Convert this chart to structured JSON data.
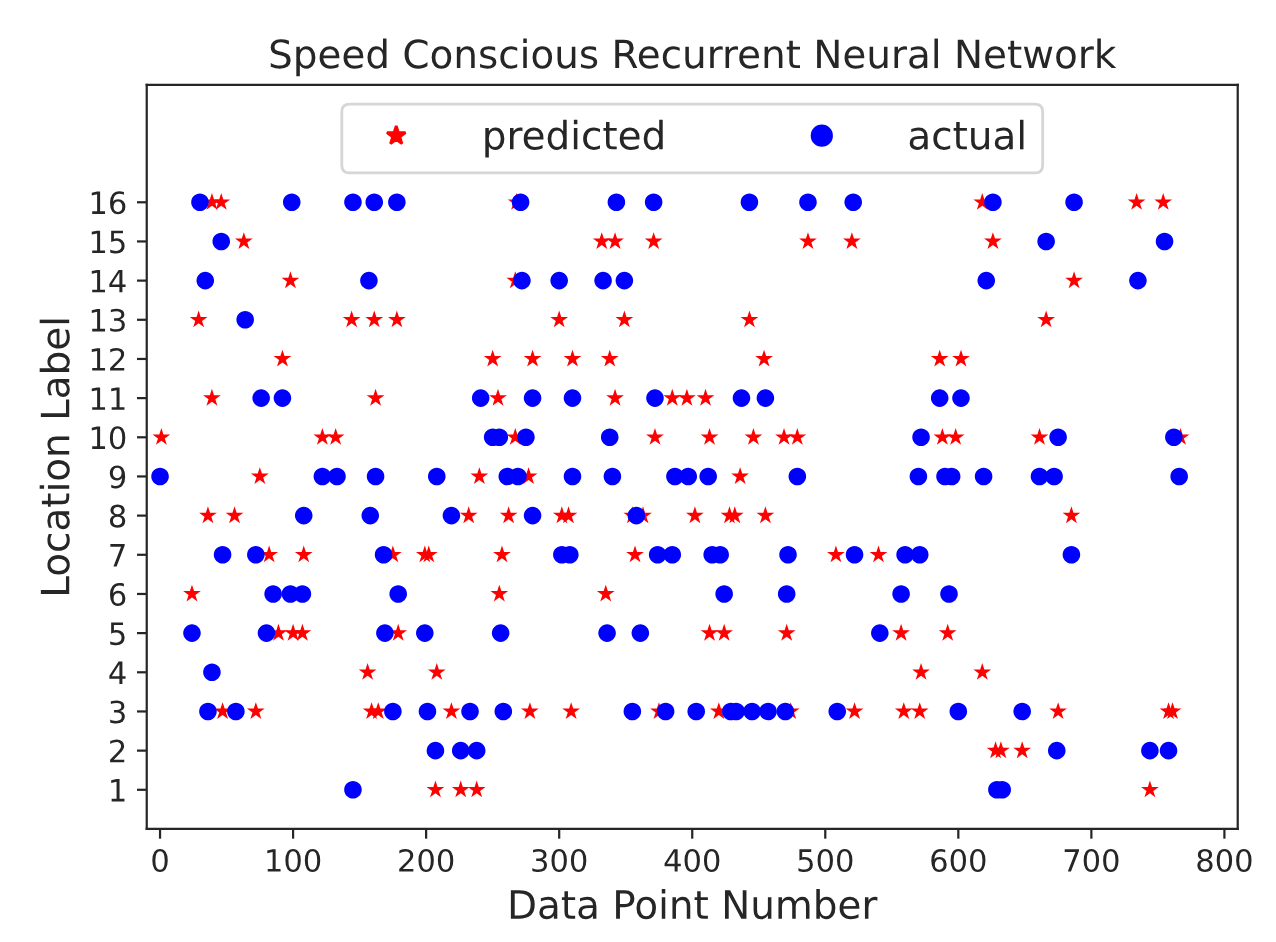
{
  "chart_data": {
    "type": "scatter",
    "title": "Speed Conscious Recurrent Neural Network",
    "xlabel": "Data Point Number",
    "ylabel": "Location Label",
    "xlim": [
      -10,
      810
    ],
    "xticks": [
      0,
      100,
      200,
      300,
      400,
      500,
      600,
      700,
      800
    ],
    "ylim": [
      0,
      19
    ],
    "yticks": [
      1,
      2,
      3,
      4,
      5,
      6,
      7,
      8,
      9,
      10,
      11,
      12,
      13,
      14,
      15,
      16
    ],
    "grid": false,
    "legend": "top",
    "series": [
      {
        "name": "predicted",
        "color": "#ff0000",
        "marker": "star",
        "x": [
          39,
          46,
          268,
          618,
          734,
          754,
          63,
          332,
          342,
          371,
          487,
          520,
          626,
          98,
          267,
          687,
          29,
          144,
          161,
          178,
          300,
          349,
          443,
          666,
          92,
          250,
          280,
          310,
          338,
          454,
          586,
          602,
          39,
          162,
          254,
          342,
          385,
          396,
          410,
          1,
          122,
          132,
          267,
          372,
          413,
          446,
          469,
          479,
          588,
          598,
          661,
          767,
          75,
          240,
          277,
          436,
          36,
          56,
          232,
          262,
          302,
          307,
          355,
          363,
          402,
          428,
          432,
          455,
          685,
          82,
          108,
          175,
          199,
          202,
          257,
          357,
          508,
          540,
          24,
          255,
          335,
          89,
          100,
          107,
          179,
          413,
          424,
          471,
          557,
          592,
          156,
          208,
          572,
          618,
          47,
          72,
          159,
          164,
          219,
          278,
          309,
          375,
          420,
          474,
          522,
          559,
          571,
          675,
          758,
          761,
          628,
          632,
          648,
          207,
          226,
          238,
          744
        ],
        "values": [
          16,
          16,
          16,
          16,
          16,
          16,
          15,
          15,
          15,
          15,
          15,
          15,
          15,
          14,
          14,
          14,
          13,
          13,
          13,
          13,
          13,
          13,
          13,
          13,
          12,
          12,
          12,
          12,
          12,
          12,
          12,
          12,
          11,
          11,
          11,
          11,
          11,
          11,
          11,
          10,
          10,
          10,
          10,
          10,
          10,
          10,
          10,
          10,
          10,
          10,
          10,
          10,
          9,
          9,
          9,
          9,
          8,
          8,
          8,
          8,
          8,
          8,
          8,
          8,
          8,
          8,
          8,
          8,
          8,
          7,
          7,
          7,
          7,
          7,
          7,
          7,
          7,
          7,
          6,
          6,
          6,
          5,
          5,
          5,
          5,
          5,
          5,
          5,
          5,
          5,
          4,
          4,
          4,
          4,
          3,
          3,
          3,
          3,
          3,
          3,
          3,
          3,
          3,
          3,
          3,
          3,
          3,
          3,
          3,
          3,
          2,
          2,
          2,
          1,
          1,
          1,
          1
        ]
      },
      {
        "name": "actual",
        "color": "#0000ff",
        "marker": "circle",
        "x": [
          30,
          99,
          145,
          161,
          178,
          271,
          343,
          371,
          443,
          487,
          521,
          626,
          687,
          46,
          666,
          755,
          34,
          157,
          272,
          300,
          333,
          349,
          621,
          735,
          64,
          76,
          92,
          241,
          280,
          310,
          372,
          437,
          455,
          586,
          602,
          250,
          255,
          275,
          338,
          572,
          675,
          762,
          0,
          122,
          133,
          162,
          208,
          261,
          269,
          310,
          340,
          387,
          397,
          412,
          479,
          570,
          590,
          595,
          619,
          661,
          672,
          766,
          108,
          158,
          219,
          280,
          358,
          47,
          72,
          168,
          302,
          308,
          374,
          385,
          415,
          421,
          472,
          522,
          560,
          571,
          685,
          85,
          98,
          107,
          179,
          424,
          471,
          557,
          593,
          24,
          80,
          169,
          199,
          256,
          336,
          361,
          541,
          39,
          36,
          57,
          175,
          201,
          233,
          258,
          355,
          380,
          403,
          429,
          433,
          445,
          457,
          470,
          509,
          600,
          648,
          207,
          226,
          238,
          674,
          744,
          758,
          145,
          629,
          633
        ],
        "values": [
          16,
          16,
          16,
          16,
          16,
          16,
          16,
          16,
          16,
          16,
          16,
          16,
          16,
          15,
          15,
          15,
          14,
          14,
          14,
          14,
          14,
          14,
          14,
          14,
          13,
          11,
          11,
          11,
          11,
          11,
          11,
          11,
          11,
          11,
          11,
          10,
          10,
          10,
          10,
          10,
          10,
          10,
          9,
          9,
          9,
          9,
          9,
          9,
          9,
          9,
          9,
          9,
          9,
          9,
          9,
          9,
          9,
          9,
          9,
          9,
          9,
          9,
          8,
          8,
          8,
          8,
          8,
          7,
          7,
          7,
          7,
          7,
          7,
          7,
          7,
          7,
          7,
          7,
          7,
          7,
          7,
          6,
          6,
          6,
          6,
          6,
          6,
          6,
          6,
          5,
          5,
          5,
          5,
          5,
          5,
          5,
          5,
          4,
          3,
          3,
          3,
          3,
          3,
          3,
          3,
          3,
          3,
          3,
          3,
          3,
          3,
          3,
          3,
          3,
          3,
          2,
          2,
          2,
          2,
          2,
          2,
          1,
          1,
          1
        ]
      }
    ]
  }
}
